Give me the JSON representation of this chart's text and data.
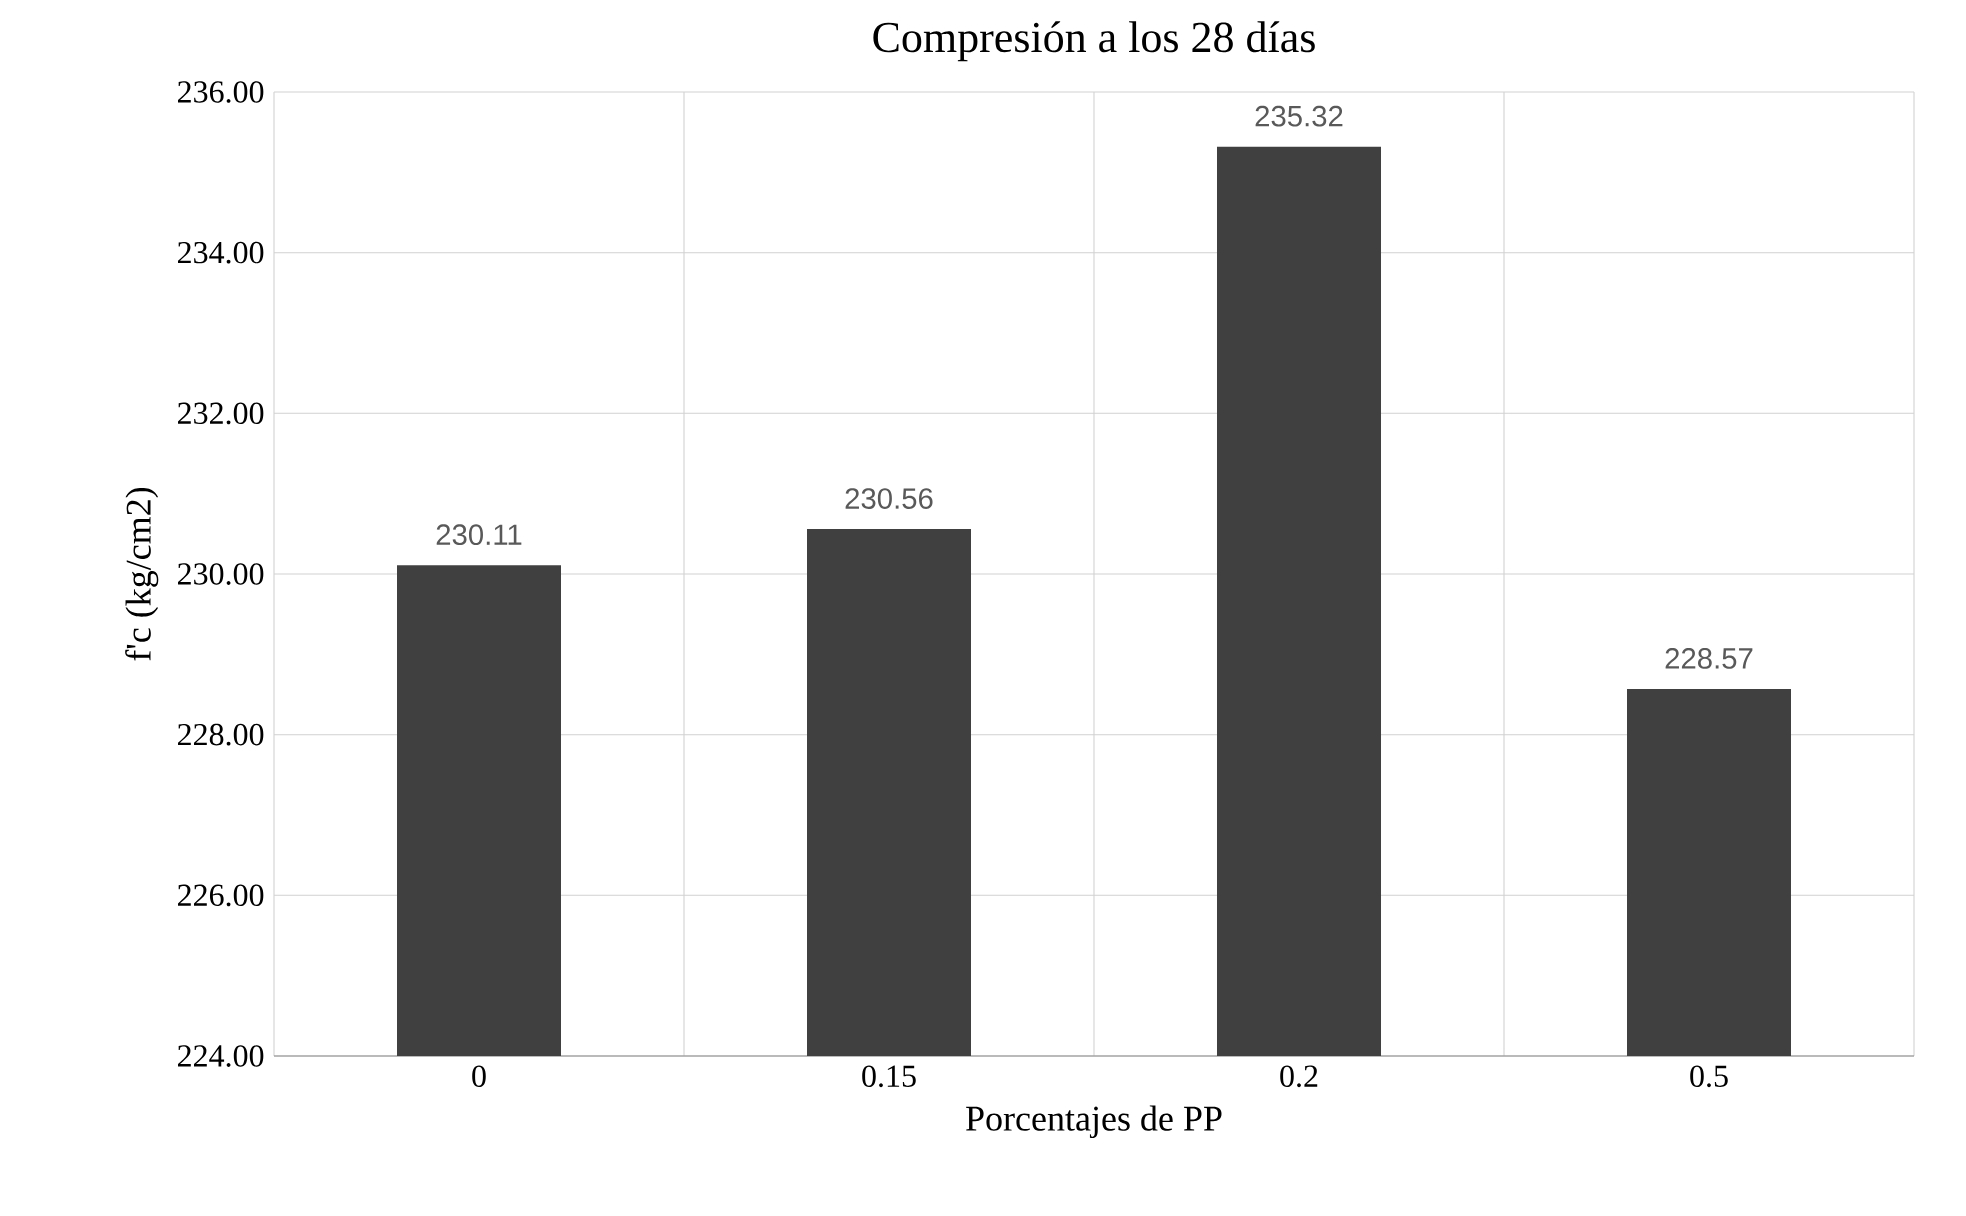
{
  "chart_data": {
    "type": "bar",
    "title": "Compresión a los 28 días",
    "xlabel": "Porcentajes de PP",
    "ylabel": "f'c  (kg/cm2)",
    "categories": [
      "0",
      "0.15",
      "0.2",
      "0.5"
    ],
    "values": [
      230.11,
      230.56,
      235.32,
      228.57
    ],
    "color": "#404040",
    "ylim": [
      224,
      236
    ],
    "yticks": [
      {
        "value": 224,
        "label": "224.00"
      },
      {
        "value": 226,
        "label": "226.00"
      },
      {
        "value": 228,
        "label": "228.00"
      },
      {
        "value": 230,
        "label": "230.00"
      },
      {
        "value": 232,
        "label": "232.00"
      },
      {
        "value": 234,
        "label": "234.00"
      },
      {
        "value": 236,
        "label": "236.00"
      }
    ],
    "grid": true,
    "data_labels": true
  }
}
